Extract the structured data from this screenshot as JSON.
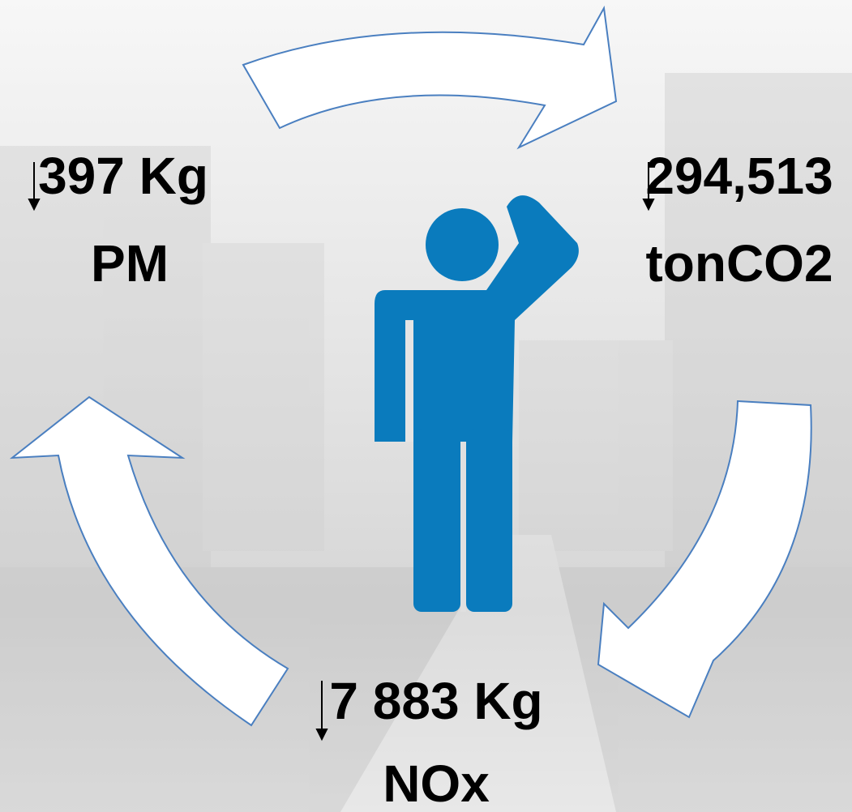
{
  "items": [
    {
      "value": "397 Kg",
      "label": "PM"
    },
    {
      "value": "294,513",
      "label": "tonCO2"
    },
    {
      "value": "7 883 Kg",
      "label": "NOx"
    }
  ]
}
